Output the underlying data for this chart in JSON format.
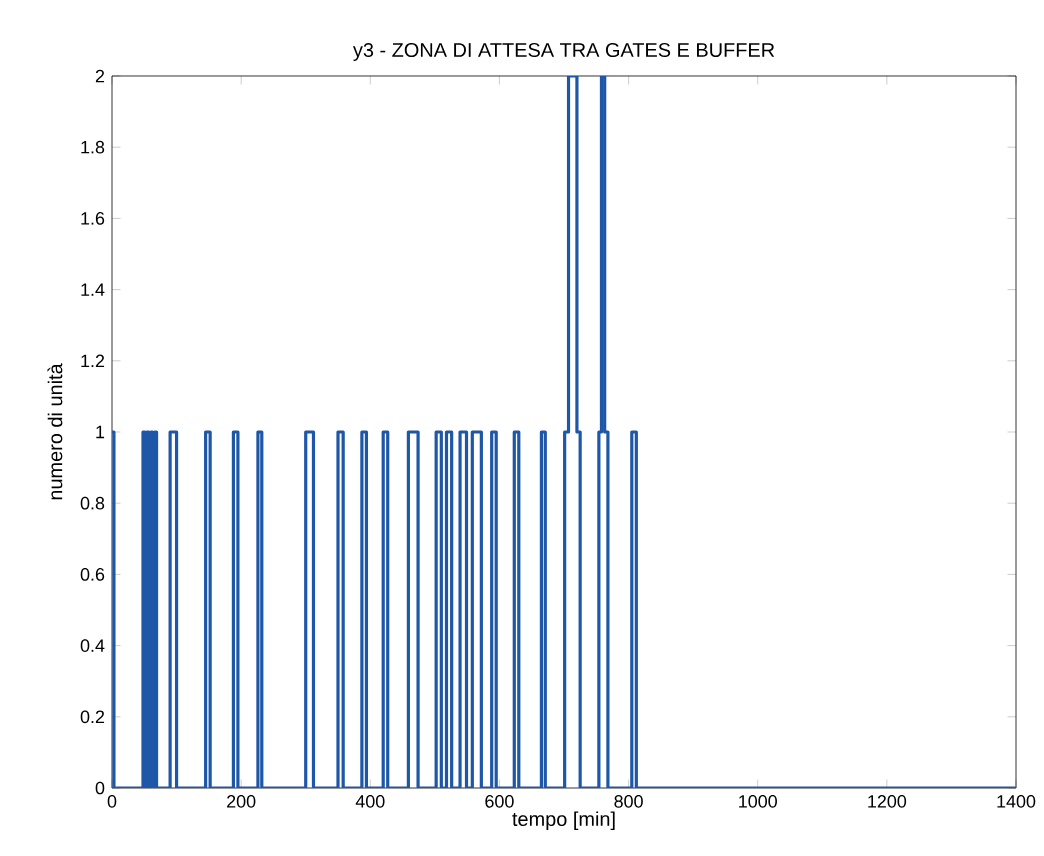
{
  "chart_data": {
    "type": "step",
    "title": "y3 - ZONA DI ATTESA TRA GATES E BUFFER",
    "xlabel": "tempo [min]",
    "ylabel": "numero di unità",
    "x": [
      0,
      3,
      48,
      51,
      54,
      57,
      60,
      63,
      66,
      69,
      90,
      100,
      145,
      152,
      188,
      195,
      226,
      232,
      300,
      312,
      350,
      358,
      387,
      394,
      420,
      427,
      459,
      474,
      502,
      510,
      518,
      526,
      539,
      549,
      558,
      572,
      588,
      595,
      623,
      630,
      665,
      671,
      701,
      707,
      720,
      725,
      754,
      758,
      763,
      768,
      805,
      812,
      1400
    ],
    "values": [
      1,
      0,
      1,
      0,
      1,
      0,
      1,
      0,
      1,
      0,
      1,
      0,
      1,
      0,
      1,
      0,
      1,
      0,
      1,
      0,
      1,
      0,
      1,
      0,
      1,
      0,
      1,
      0,
      1,
      0,
      1,
      0,
      1,
      0,
      1,
      0,
      1,
      0,
      1,
      0,
      1,
      0,
      1,
      2,
      1,
      0,
      1,
      2,
      1,
      0,
      1,
      0,
      0
    ],
    "color": "#1f57a8",
    "xlim": [
      0,
      1400
    ],
    "ylim": [
      0,
      2
    ],
    "xticks": [
      0,
      200,
      400,
      600,
      800,
      1000,
      1200,
      1400
    ],
    "yticks": [
      0,
      0.2,
      0.4,
      0.6,
      0.8,
      1,
      1.2,
      1.4,
      1.6,
      1.8,
      2
    ],
    "grid": false
  }
}
